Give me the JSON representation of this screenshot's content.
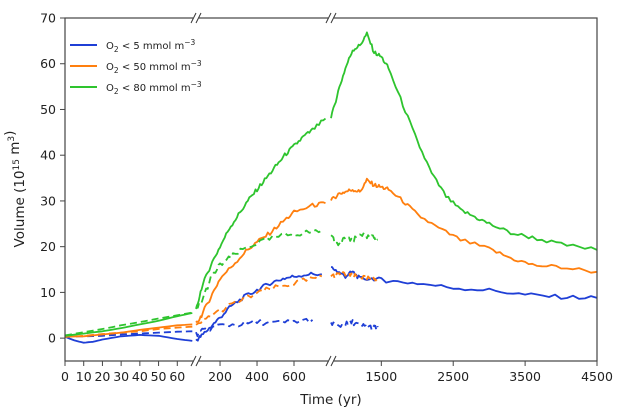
{
  "chart_data": {
    "type": "line",
    "xlabel": "Time (yr)",
    "ylabel": "Volume (10^15 m^3)",
    "ylim": [
      -5,
      70
    ],
    "y_ticks": [
      0,
      10,
      20,
      30,
      40,
      50,
      60,
      70
    ],
    "grid": false,
    "legend_position": "top-left",
    "x_axis": {
      "broken": true,
      "segments": [
        {
          "range": [
            0,
            70
          ],
          "ticks": [
            0,
            10,
            20,
            30,
            40,
            50,
            60
          ]
        },
        {
          "range": [
            70,
            800
          ],
          "ticks": [
            200,
            400,
            600
          ]
        },
        {
          "range": [
            800,
            4500
          ],
          "ticks": [
            1500,
            2500,
            3500,
            4500
          ]
        }
      ]
    },
    "legend": [
      {
        "series": "o2_lt_5",
        "prefix": "O",
        "sub": "2",
        "text": " < 5 mmol m",
        "sup": "−3"
      },
      {
        "series": "o2_lt_50",
        "prefix": "O",
        "sub": "2",
        "text": " < 50 mmol m",
        "sup": "−3"
      },
      {
        "series": "o2_lt_80",
        "prefix": "O",
        "sub": "2",
        "text": " < 80 mmol m",
        "sup": "−3"
      }
    ],
    "series": [
      {
        "id": "o2_lt_5",
        "color": "#1f3fd6",
        "style": "solid",
        "points": [
          [
            0,
            0.3
          ],
          [
            5,
            -0.5
          ],
          [
            10,
            -1
          ],
          [
            15,
            -0.8
          ],
          [
            20,
            -0.3
          ],
          [
            30,
            0.4
          ],
          [
            40,
            0.7
          ],
          [
            50,
            0.5
          ],
          [
            60,
            -0.2
          ],
          [
            68,
            -0.6
          ],
          [
            70,
            -0.5
          ],
          [
            100,
            0.5
          ],
          [
            150,
            2.5
          ],
          [
            200,
            4.5
          ],
          [
            260,
            7
          ],
          [
            330,
            9
          ],
          [
            400,
            10.5
          ],
          [
            470,
            12
          ],
          [
            540,
            13
          ],
          [
            600,
            13.5
          ],
          [
            680,
            14
          ],
          [
            750,
            14
          ],
          [
            800,
            15.5
          ],
          [
            900,
            14.5
          ],
          [
            1000,
            13.5
          ],
          [
            1100,
            14.5
          ],
          [
            1200,
            13
          ],
          [
            1400,
            13
          ],
          [
            1600,
            12.5
          ],
          [
            2000,
            12
          ],
          [
            2500,
            11
          ],
          [
            3000,
            10.5
          ],
          [
            3500,
            9.5
          ],
          [
            4000,
            9
          ],
          [
            4500,
            8.8
          ]
        ]
      },
      {
        "id": "o2_lt_5_dashed",
        "color": "#1f3fd6",
        "style": "dashed",
        "points": [
          [
            0,
            0.3
          ],
          [
            10,
            0.4
          ],
          [
            20,
            0.5
          ],
          [
            30,
            0.8
          ],
          [
            40,
            1.0
          ],
          [
            50,
            1.2
          ],
          [
            60,
            1.4
          ],
          [
            68,
            1.5
          ],
          [
            70,
            0.8
          ],
          [
            120,
            1.8
          ],
          [
            200,
            2.8
          ],
          [
            300,
            3
          ],
          [
            400,
            3.5
          ],
          [
            500,
            3.3
          ],
          [
            600,
            3.6
          ],
          [
            700,
            4
          ],
          [
            800,
            3.5
          ],
          [
            900,
            2.6
          ],
          [
            1000,
            3
          ],
          [
            1100,
            3.5
          ],
          [
            1200,
            2.8
          ],
          [
            1300,
            2.5
          ],
          [
            1400,
            2.3
          ],
          [
            1450,
            2.4
          ]
        ]
      },
      {
        "id": "o2_lt_50",
        "color": "#ff7f0e",
        "style": "solid",
        "points": [
          [
            0,
            0.3
          ],
          [
            10,
            0.4
          ],
          [
            20,
            0.8
          ],
          [
            30,
            1.2
          ],
          [
            40,
            1.8
          ],
          [
            50,
            2.3
          ],
          [
            60,
            2.8
          ],
          [
            68,
            3
          ],
          [
            70,
            3
          ],
          [
            100,
            5
          ],
          [
            150,
            9
          ],
          [
            200,
            13
          ],
          [
            270,
            16
          ],
          [
            340,
            19
          ],
          [
            400,
            21
          ],
          [
            470,
            23
          ],
          [
            540,
            25.5
          ],
          [
            600,
            27.5
          ],
          [
            700,
            29
          ],
          [
            770,
            29.5
          ],
          [
            800,
            30
          ],
          [
            900,
            31.5
          ],
          [
            1000,
            32
          ],
          [
            1100,
            32.5
          ],
          [
            1200,
            32
          ],
          [
            1300,
            34.5
          ],
          [
            1400,
            33.5
          ],
          [
            1500,
            33
          ],
          [
            1600,
            32.5
          ],
          [
            1800,
            30
          ],
          [
            2000,
            27
          ],
          [
            2300,
            24
          ],
          [
            2600,
            21.5
          ],
          [
            3000,
            19.5
          ],
          [
            3300,
            17.5
          ],
          [
            3600,
            16
          ],
          [
            4000,
            15.5
          ],
          [
            4500,
            14.5
          ]
        ]
      },
      {
        "id": "o2_lt_50_dashed",
        "color": "#ff7f0e",
        "style": "dashed",
        "points": [
          [
            0,
            0.3
          ],
          [
            10,
            0.5
          ],
          [
            20,
            0.9
          ],
          [
            30,
            1.2
          ],
          [
            40,
            1.5
          ],
          [
            50,
            2
          ],
          [
            60,
            2.3
          ],
          [
            68,
            2.5
          ],
          [
            70,
            2.5
          ],
          [
            150,
            5
          ],
          [
            250,
            7
          ],
          [
            350,
            9
          ],
          [
            450,
            10.5
          ],
          [
            550,
            11.5
          ],
          [
            650,
            12.5
          ],
          [
            750,
            13.5
          ],
          [
            800,
            13.5
          ],
          [
            900,
            13.8
          ],
          [
            1000,
            14
          ],
          [
            1100,
            13.5
          ],
          [
            1200,
            13.5
          ],
          [
            1300,
            13
          ],
          [
            1400,
            13
          ],
          [
            1450,
            13.2
          ]
        ]
      },
      {
        "id": "o2_lt_80",
        "color": "#2ec42e",
        "style": "solid",
        "points": [
          [
            0,
            0.5
          ],
          [
            10,
            1
          ],
          [
            20,
            1.5
          ],
          [
            30,
            2.2
          ],
          [
            40,
            3
          ],
          [
            50,
            3.8
          ],
          [
            60,
            4.8
          ],
          [
            68,
            5.5
          ],
          [
            70,
            6
          ],
          [
            100,
            11
          ],
          [
            150,
            16
          ],
          [
            200,
            20
          ],
          [
            250,
            24
          ],
          [
            300,
            27
          ],
          [
            350,
            30
          ],
          [
            400,
            32.5
          ],
          [
            450,
            35
          ],
          [
            500,
            37.5
          ],
          [
            550,
            40
          ],
          [
            600,
            42
          ],
          [
            650,
            44
          ],
          [
            700,
            45.5
          ],
          [
            770,
            48
          ],
          [
            800,
            48
          ],
          [
            900,
            54
          ],
          [
            1000,
            59
          ],
          [
            1100,
            63
          ],
          [
            1200,
            64
          ],
          [
            1300,
            66.5
          ],
          [
            1400,
            62.5
          ],
          [
            1500,
            61.5
          ],
          [
            1600,
            59
          ],
          [
            1800,
            51
          ],
          [
            2000,
            43
          ],
          [
            2200,
            36
          ],
          [
            2400,
            31
          ],
          [
            2600,
            28
          ],
          [
            2800,
            26.5
          ],
          [
            3000,
            25
          ],
          [
            3300,
            23
          ],
          [
            3600,
            22
          ],
          [
            4000,
            20.5
          ],
          [
            4500,
            19.3
          ]
        ]
      },
      {
        "id": "o2_lt_80_dashed",
        "color": "#2ec42e",
        "style": "dashed",
        "points": [
          [
            0,
            0.6
          ],
          [
            10,
            1.3
          ],
          [
            20,
            2
          ],
          [
            30,
            2.8
          ],
          [
            40,
            3.5
          ],
          [
            50,
            4.3
          ],
          [
            60,
            5
          ],
          [
            68,
            5.6
          ],
          [
            70,
            6
          ],
          [
            100,
            8
          ],
          [
            150,
            13
          ],
          [
            200,
            16
          ],
          [
            270,
            18
          ],
          [
            350,
            20
          ],
          [
            450,
            21.5
          ],
          [
            550,
            22.5
          ],
          [
            650,
            23
          ],
          [
            750,
            23.5
          ],
          [
            800,
            22.5
          ],
          [
            900,
            20
          ],
          [
            1000,
            22
          ],
          [
            1100,
            21
          ],
          [
            1200,
            23
          ],
          [
            1300,
            22
          ],
          [
            1400,
            22
          ],
          [
            1450,
            21.5
          ]
        ]
      }
    ]
  }
}
